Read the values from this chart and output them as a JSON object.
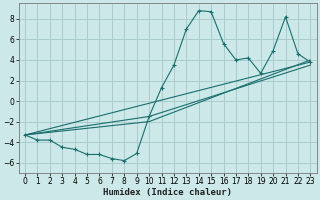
{
  "xlabel": "Humidex (Indice chaleur)",
  "bg_color": "#cce8e8",
  "grid_color": "#aacccc",
  "line_color": "#1a6e6e",
  "xlim": [
    -0.5,
    23.5
  ],
  "ylim": [
    -7,
    9.5
  ],
  "yticks": [
    -6,
    -4,
    -2,
    0,
    2,
    4,
    6,
    8
  ],
  "xticks": [
    0,
    1,
    2,
    3,
    4,
    5,
    6,
    7,
    8,
    9,
    10,
    11,
    12,
    13,
    14,
    15,
    16,
    17,
    18,
    19,
    20,
    21,
    22,
    23
  ],
  "series1_x": [
    0,
    1,
    2,
    3,
    4,
    5,
    6,
    7,
    8,
    9,
    10,
    11,
    12,
    13,
    14,
    15,
    16,
    17,
    18,
    19,
    20,
    21,
    22,
    23
  ],
  "series1_y": [
    -3.3,
    -3.8,
    -3.8,
    -4.5,
    -4.7,
    -5.2,
    -5.2,
    -5.6,
    -5.8,
    -5.1,
    -1.5,
    1.3,
    3.5,
    7.0,
    8.8,
    8.7,
    5.6,
    4.0,
    4.2,
    2.7,
    4.9,
    8.2,
    4.6,
    3.8
  ],
  "line2_x": [
    0,
    23
  ],
  "line2_y": [
    -3.3,
    3.8
  ],
  "line3_x": [
    0,
    10,
    23
  ],
  "line3_y": [
    -3.3,
    -2.0,
    4.0
  ],
  "line4_x": [
    0,
    10,
    23
  ],
  "line4_y": [
    -3.3,
    -1.5,
    3.5
  ]
}
